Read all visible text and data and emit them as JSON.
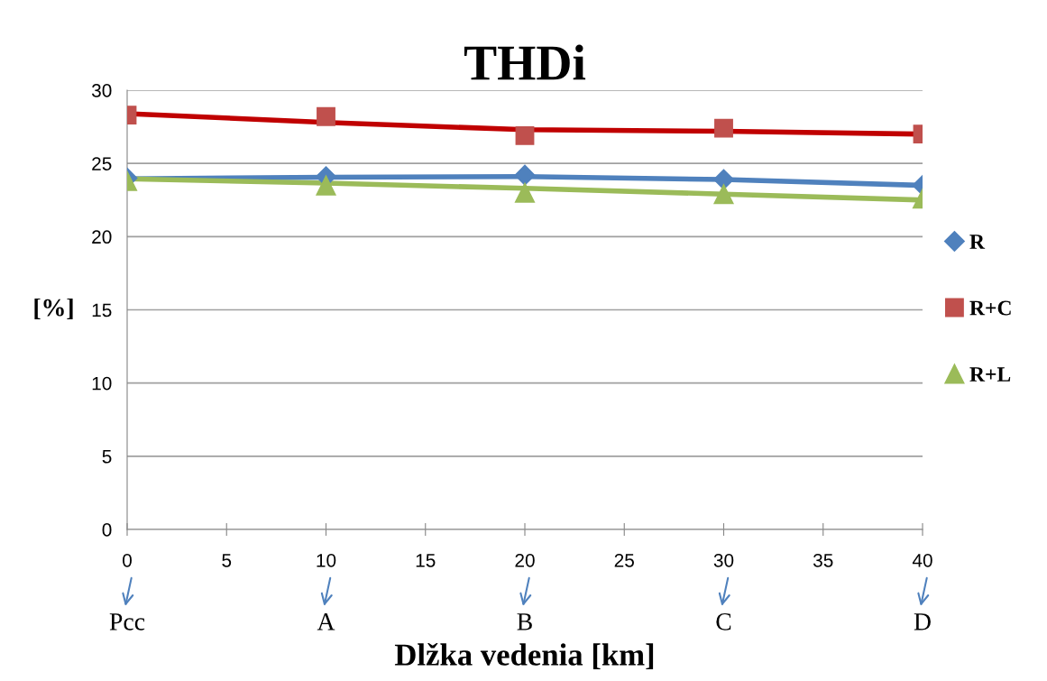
{
  "chart_data": {
    "type": "scatter",
    "title": "THDi",
    "xlabel": "Dlžka vedenia [km]",
    "ylabel": "[%]",
    "x": [
      0,
      10,
      20,
      30,
      40
    ],
    "series": [
      {
        "name": "R",
        "color": "#4f81bd",
        "marker": "diamond",
        "values": [
          24.0,
          24.1,
          24.2,
          23.9,
          23.5
        ]
      },
      {
        "name": "R+C",
        "color": "#c0504d",
        "marker": "square",
        "values": [
          28.3,
          28.2,
          26.9,
          27.4,
          27.0
        ]
      },
      {
        "name": "R+L",
        "color": "#9bbb59",
        "marker": "triangle",
        "values": [
          23.8,
          23.5,
          23.0,
          22.9,
          22.6
        ]
      },
      {
        "type": "line",
        "color": "#4f81bd",
        "values": [
          23.95,
          24.05,
          24.1,
          23.9,
          23.5
        ]
      },
      {
        "type": "line",
        "color": "#c00000",
        "values": [
          28.4,
          27.8,
          27.3,
          27.2,
          27.0
        ]
      },
      {
        "type": "line",
        "color": "#9bbb59",
        "values": [
          23.95,
          23.65,
          23.3,
          22.9,
          22.5
        ]
      }
    ],
    "xlim": [
      0,
      40
    ],
    "xticks": [
      0,
      5,
      10,
      15,
      20,
      25,
      30,
      35,
      40
    ],
    "ylim": [
      0,
      30
    ],
    "yticks": [
      0,
      5,
      10,
      15,
      20,
      25,
      30
    ],
    "grid": "y",
    "legend": "right",
    "annotations": [
      "Pcc",
      "A",
      "B",
      "C",
      "D"
    ]
  }
}
